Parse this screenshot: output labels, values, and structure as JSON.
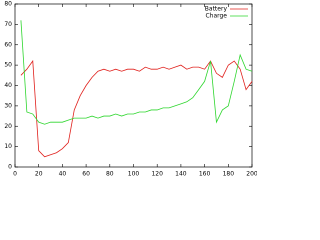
{
  "chart_data": {
    "type": "line",
    "x": [
      5,
      10,
      15,
      20,
      25,
      30,
      35,
      40,
      45,
      50,
      55,
      60,
      65,
      70,
      75,
      80,
      85,
      90,
      95,
      100,
      105,
      110,
      115,
      120,
      125,
      130,
      135,
      140,
      145,
      150,
      155,
      160,
      165,
      170,
      175,
      180,
      185,
      190,
      195,
      200
    ],
    "series": [
      {
        "name": "Battery",
        "color": "#e0201c",
        "values": [
          45,
          48,
          52,
          8,
          5,
          6,
          7,
          9,
          12,
          28,
          35,
          40,
          44,
          47,
          48,
          47,
          48,
          47,
          48,
          48,
          47,
          49,
          48,
          48,
          49,
          48,
          49,
          50,
          48,
          49,
          49,
          48,
          52,
          46,
          44,
          50,
          52,
          48,
          38,
          42
        ]
      },
      {
        "name": "Charge",
        "color": "#2ed62e",
        "values": [
          72,
          27,
          26,
          22,
          21,
          22,
          22,
          22,
          23,
          24,
          24,
          24,
          25,
          24,
          25,
          25,
          26,
          25,
          26,
          26,
          27,
          27,
          28,
          28,
          29,
          29,
          30,
          31,
          32,
          34,
          38,
          42,
          52,
          22,
          28,
          30,
          42,
          55,
          48,
          47
        ]
      }
    ],
    "xlim": [
      0,
      200
    ],
    "xticks": [
      0,
      20,
      40,
      60,
      80,
      100,
      120,
      140,
      160,
      180,
      200
    ],
    "ylim": [
      0,
      80
    ],
    "yticks": [
      0,
      10,
      20,
      30,
      40,
      50,
      60,
      70,
      80
    ],
    "grid": false,
    "legend": "top-right"
  }
}
